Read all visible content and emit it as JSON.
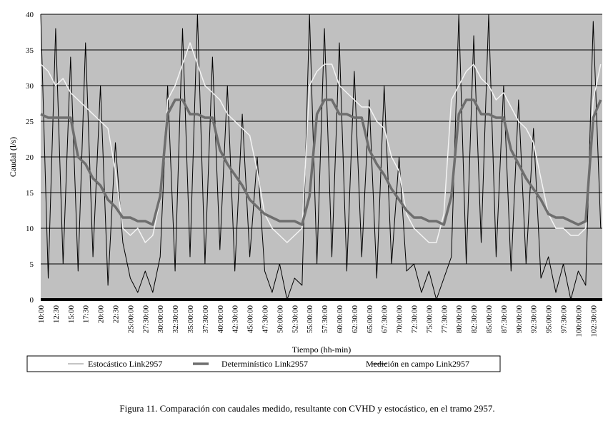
{
  "chart_data": {
    "type": "line",
    "x_label": "Tiempo (hh-min)",
    "y_label": "Caudal (l/s)",
    "caption": "Figura 11. Comparación con caudales medido, resultante con CVHD y estocástico, en el tramo 2957.",
    "categories": [
      "10:00",
      null,
      "12:30",
      null,
      "15:00",
      null,
      "17:30",
      null,
      "20:00",
      null,
      "22:30",
      null,
      "25:00:00",
      null,
      "27:30:00",
      null,
      "30:00:00",
      null,
      "32:30:00",
      null,
      "35:00:00",
      null,
      "37:30:00",
      null,
      "40:00:00",
      null,
      "42:30:00",
      null,
      "45:00:00",
      null,
      "47:30:00",
      null,
      "50:00:00",
      null,
      "52:30:00",
      null,
      "55:00:00",
      null,
      "57:30:00",
      null,
      "60:00:00",
      null,
      "62:30:00",
      null,
      "65:00:00",
      null,
      "67:30:00",
      null,
      "70:00:00",
      null,
      "72:30:00",
      null,
      "75:00:00",
      null,
      "77:30:00",
      null,
      "80:00:00",
      null,
      "82:30:00",
      null,
      "85:00:00",
      null,
      "87:30:00",
      null,
      "90:00:00",
      null,
      "92:30:00",
      null,
      "95:00:00",
      null,
      "97:30:00",
      null,
      "100:00:00",
      null,
      "102:30:00",
      null
    ],
    "series": [
      {
        "name": "Medición en campo Link2957",
        "color": "#000000",
        "width": 1,
        "values": [
          40,
          3,
          38,
          5,
          34,
          4,
          36,
          6,
          30,
          2,
          22,
          8,
          3,
          1,
          4,
          1,
          6,
          30,
          4,
          38,
          6,
          40,
          5,
          34,
          7,
          30,
          4,
          26,
          6,
          20,
          4,
          1,
          5,
          0,
          3,
          2,
          40,
          5,
          38,
          6,
          36,
          4,
          32,
          6,
          28,
          3,
          30,
          5,
          20,
          4,
          5,
          1,
          4,
          0,
          3,
          6,
          40,
          5,
          37,
          8,
          40,
          6,
          30,
          4,
          28,
          5,
          24,
          3,
          6,
          1,
          5,
          0,
          4,
          2,
          39,
          10
        ]
      },
      {
        "name": "Estocástico Link2957",
        "color": "#f4f4f4",
        "width": 1.5,
        "values": [
          33,
          32,
          30,
          31,
          29,
          28,
          27,
          26,
          25,
          24,
          18,
          10,
          9,
          10,
          8,
          9,
          14,
          28,
          30,
          33,
          36,
          33,
          30,
          29,
          28,
          26,
          25,
          24,
          23,
          18,
          12,
          10,
          9,
          8,
          9,
          10,
          30,
          32,
          33,
          33,
          30,
          29,
          28,
          27,
          27,
          25,
          24,
          20,
          18,
          12,
          10,
          9,
          8,
          8,
          12,
          28,
          30,
          32,
          33,
          31,
          30,
          28,
          29,
          27,
          25,
          24,
          22,
          17,
          12,
          10,
          10,
          9,
          9,
          10,
          28,
          33
        ]
      },
      {
        "name": "Determinístico Link2957",
        "color": "#6e6e6e",
        "width": 3.5,
        "values": [
          26,
          25.5,
          25.5,
          25.5,
          25.5,
          20,
          19,
          17,
          16,
          14,
          13,
          11.5,
          11.5,
          11,
          11,
          10.5,
          14.5,
          26,
          28,
          28,
          26,
          26,
          25.5,
          25.5,
          21,
          19,
          17.5,
          16,
          14,
          13,
          12,
          11.5,
          11,
          11,
          11,
          10.5,
          14.5,
          26,
          28,
          28,
          26,
          26,
          25.5,
          25.5,
          21,
          19,
          17.5,
          15.5,
          14,
          12.5,
          11.5,
          11.5,
          11,
          11,
          10.5,
          14.5,
          26,
          28,
          28,
          26,
          26,
          25.5,
          25.5,
          21,
          19,
          17,
          15.5,
          14,
          12,
          11.5,
          11.5,
          11,
          10.5,
          11,
          25.5,
          28
        ]
      }
    ],
    "legend_order": [
      1,
      2,
      0
    ],
    "ylim": [
      0,
      40
    ],
    "yticks": [
      0,
      5,
      10,
      15,
      20,
      25,
      30,
      35,
      40
    ],
    "grid": true,
    "legend": "bottom"
  }
}
